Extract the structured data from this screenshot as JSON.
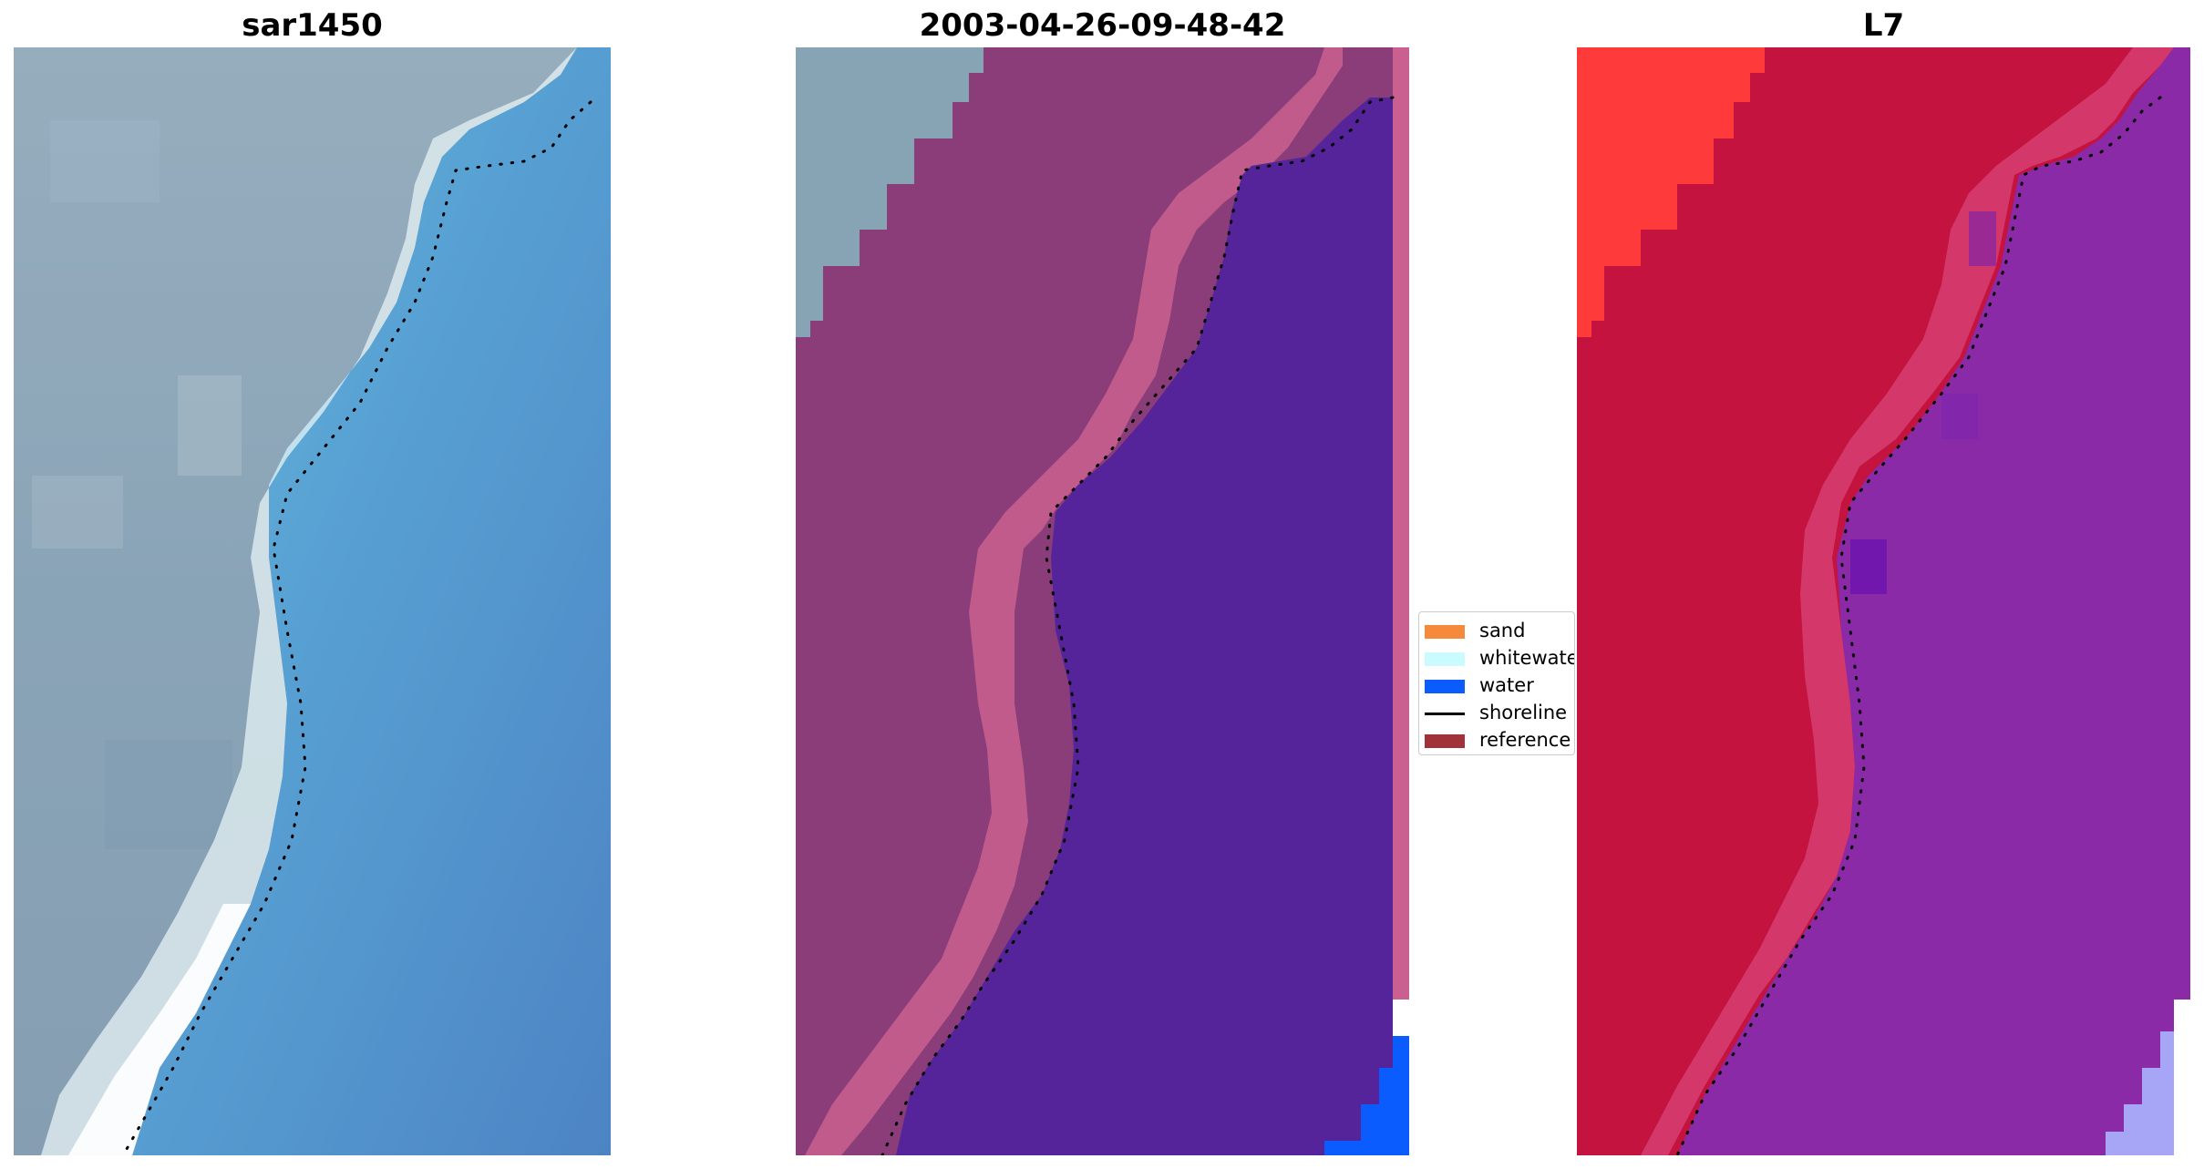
{
  "panels": [
    {
      "title": "sar1450"
    },
    {
      "title": "2003-04-26-09-48-42"
    },
    {
      "title": "L7"
    }
  ],
  "legend": {
    "items": [
      {
        "label": "sand",
        "color": "#f58a3c"
      },
      {
        "label": "whitewater",
        "color": "#c9fbff"
      },
      {
        "label": "water",
        "color": "#0a5cff"
      },
      {
        "label": "shoreline",
        "color": "#000000"
      },
      {
        "label": "reference",
        "color": "#a1323a"
      }
    ]
  },
  "colors": {
    "rgb_land": "#8ea7b8",
    "rgb_water": "#4f90cc",
    "rgb_surf": "#ffffff",
    "class_land": "#8a3d78",
    "class_water": "#56249a",
    "class_edge": "#c9608f",
    "class_water_blue": "#0a5cff",
    "class_rgb_corner": "#86a4b4",
    "ndwi_land": "#c3133e",
    "ndwi_water": "#8b2aa6",
    "ndwi_red": "#ff3a3a",
    "ndwi_lavender": "#a7a5f5"
  }
}
